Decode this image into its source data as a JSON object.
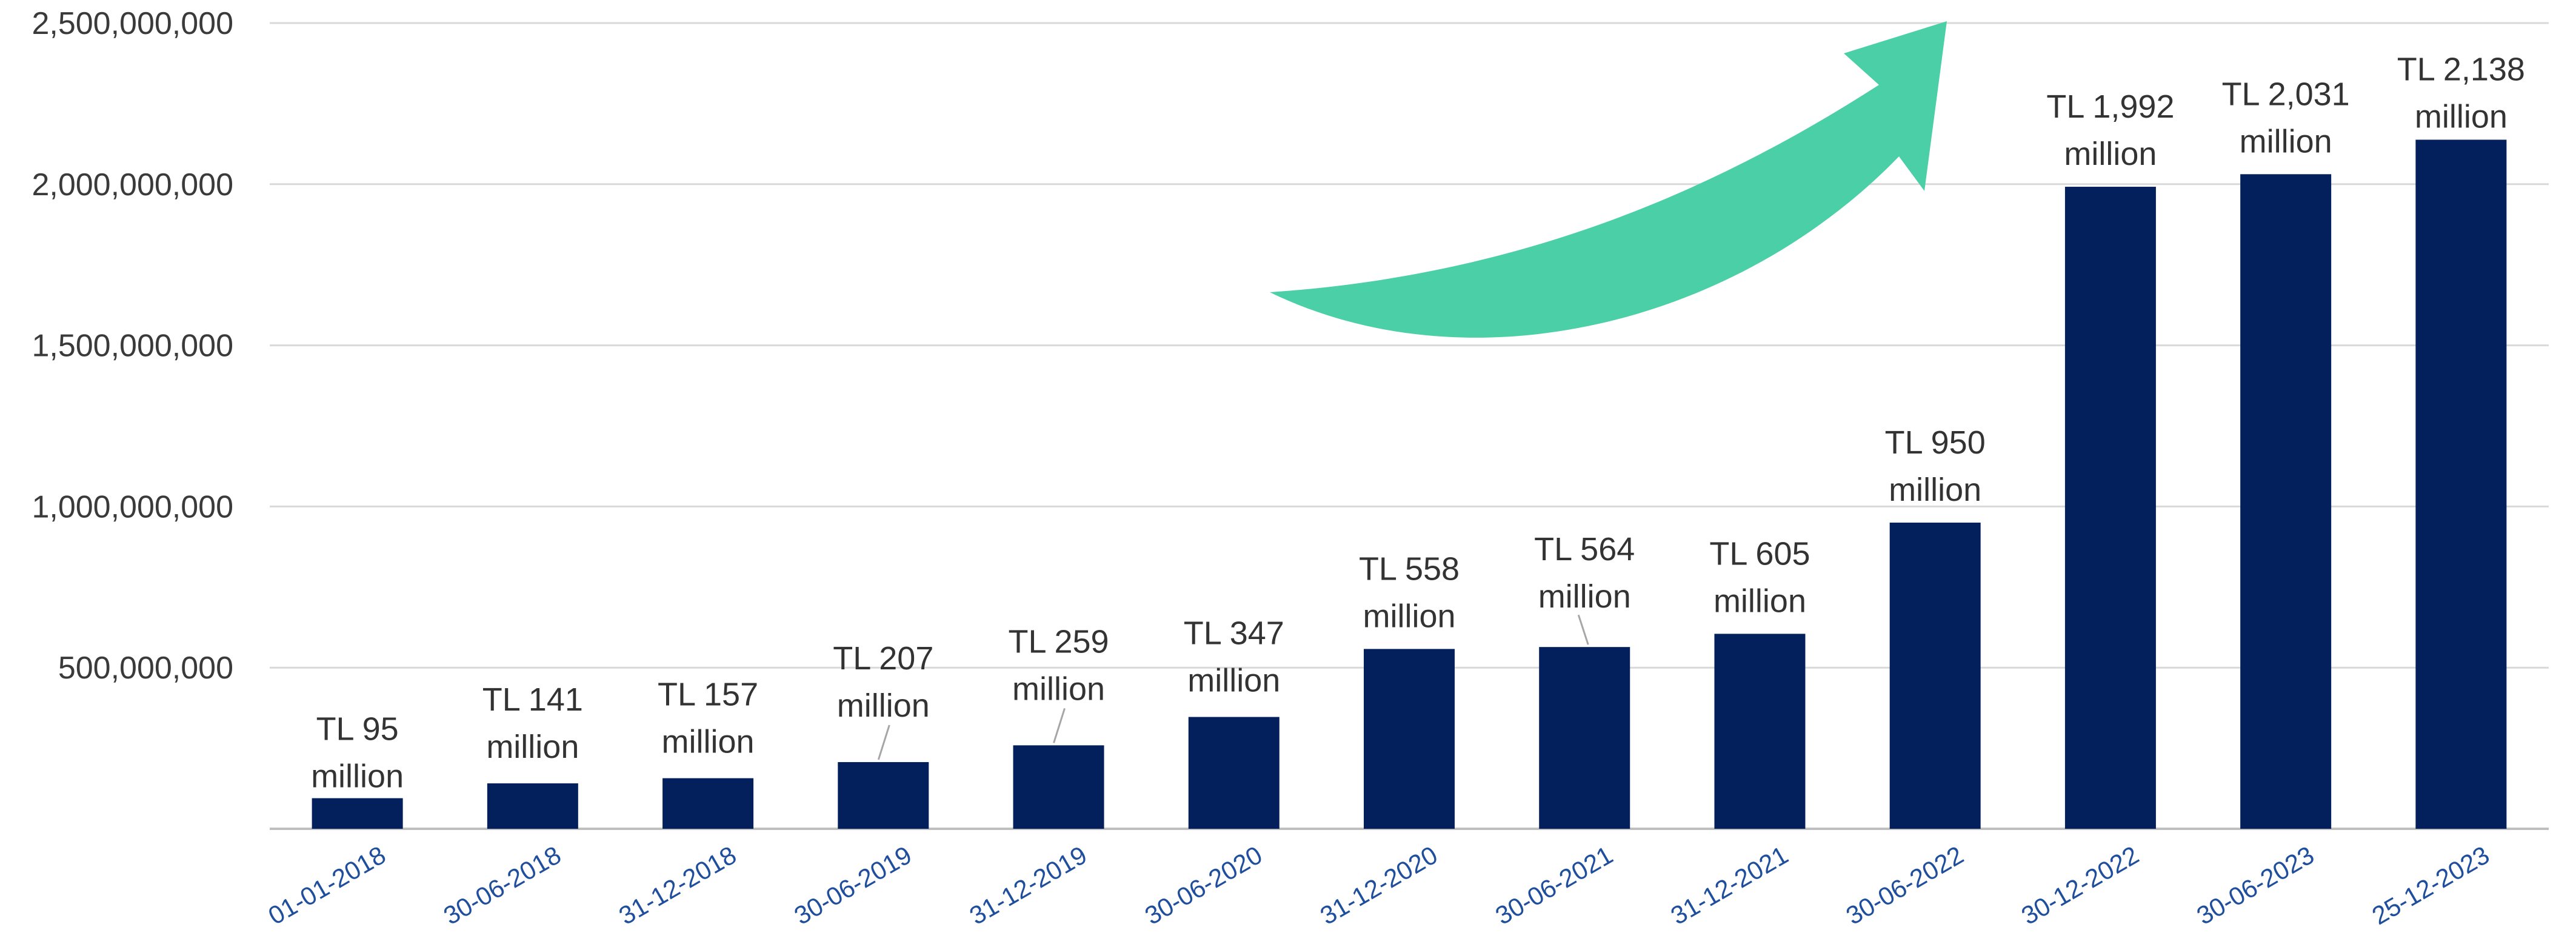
{
  "colors": {
    "bar": "#03205c",
    "grid": "#d9d9d9",
    "axis": "#bfbfbf",
    "arrow": "#4bcfa6",
    "x_tick_text": "#1f4e9c",
    "y_tick_text": "#3a3a3a",
    "label_text": "#333333",
    "leader": "#a6a6a6"
  },
  "chart_data": {
    "type": "bar",
    "title": "",
    "xlabel": "",
    "ylabel": "",
    "ylim": [
      0,
      2500000000
    ],
    "y_ticks": [
      500000000,
      1000000000,
      1500000000,
      2000000000,
      2500000000
    ],
    "y_tick_labels": [
      "500,000,000",
      "1,000,000,000",
      "1,500,000,000",
      "2,000,000,000",
      "2,500,000,000"
    ],
    "grid": true,
    "legend": "none",
    "categories": [
      "01-01-2018",
      "30-06-2018",
      "31-12-2018",
      "30-06-2019",
      "31-12-2019",
      "30-06-2020",
      "31-12-2020",
      "30-06-2021",
      "31-12-2021",
      "30-06-2022",
      "30-12-2022",
      "30-06-2023",
      "25-12-2023"
    ],
    "values": [
      95000000,
      141000000,
      157000000,
      207000000,
      259000000,
      347000000,
      558000000,
      564000000,
      605000000,
      950000000,
      1992000000,
      2031000000,
      2138000000
    ],
    "data_labels": [
      [
        "TL 95",
        "million"
      ],
      [
        "TL 141",
        "million"
      ],
      [
        "TL 157",
        "million"
      ],
      [
        "TL 207",
        "million"
      ],
      [
        "TL 259",
        "million"
      ],
      [
        "TL 347",
        "million"
      ],
      [
        "TL 558",
        "million"
      ],
      [
        "TL 564",
        "million"
      ],
      [
        "TL 605",
        "million"
      ],
      [
        "TL 950",
        "million"
      ],
      [
        "TL 1,992",
        "million"
      ],
      [
        "TL 2,031",
        "million"
      ],
      [
        "TL 2,138",
        "million"
      ]
    ],
    "annotations": [
      "upward-growth-arrow"
    ]
  }
}
